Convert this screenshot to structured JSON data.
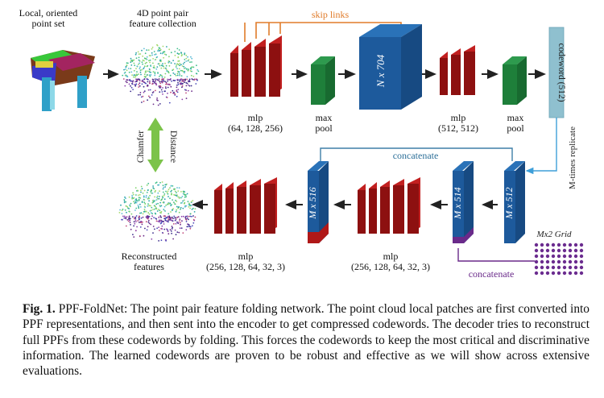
{
  "figure": {
    "labels": {
      "local_points": "Local, oriented\npoint set",
      "ppf_collection": "4D point pair\nfeature collection",
      "skip_links": "skip links",
      "mlp1": "mlp\n(64, 128, 256)",
      "maxpool1": "max\npool",
      "block_704": "N x 704",
      "mlp2": "mlp\n(512, 512)",
      "maxpool2": "max\npool",
      "codeword": "codeword (512)",
      "replicate": "M-times replicate",
      "chamfer": "Chamfer",
      "distance": "Distance",
      "concatenate_top": "concatenate",
      "block_516": "M x 516",
      "block_514": "M x 514",
      "block_512": "M x 512",
      "grid": "Mx2 Grid",
      "concatenate_bottom": "concatenate",
      "reconstructed": "Reconstructed\nfeatures",
      "mlp_dec1": "mlp\n(256, 128, 64, 32, 3)",
      "mlp_dec2": "mlp\n(256, 128, 64, 32, 3)"
    },
    "colors": {
      "red_block": "#a31616",
      "green_block": "#1e7f3a",
      "blue_block": "#1d5a9c",
      "codeword_fill": "#8fc0cf",
      "skip_orange": "#e07b29",
      "concat_blue": "#3e7fa7",
      "concat_purple": "#6a2a8a",
      "chamfer_green": "#7cc34a",
      "grid_purple": "#6b2c8f",
      "arrow": "#222222"
    }
  },
  "caption": {
    "lead": "Fig. 1.",
    "text": " PPF-FoldNet: The point pair feature folding network. The point cloud local patches are first converted into PPF representations, and then sent into the encoder to get compressed codewords. The decoder tries to reconstruct full PPFs from these codewords by folding. This forces the codewords to keep the most critical and discriminative information. The learned codewords are proven to be robust and effective as we will show across extensive evaluations."
  }
}
